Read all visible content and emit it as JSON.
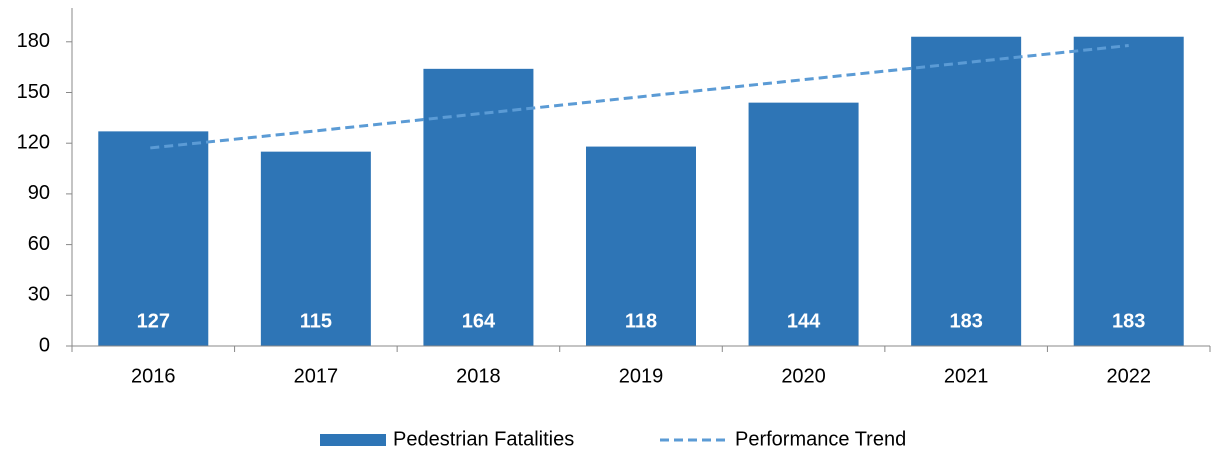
{
  "chart_data": {
    "type": "bar",
    "categories": [
      "2016",
      "2017",
      "2018",
      "2019",
      "2020",
      "2021",
      "2022"
    ],
    "series": [
      {
        "name": "Pedestrian Fatalities",
        "type": "bar",
        "color": "#2e75b6",
        "values": [
          127,
          115,
          164,
          118,
          144,
          183,
          183
        ]
      },
      {
        "name": "Performance Trend",
        "type": "line",
        "style": "dashed",
        "color": "#5b9bd5",
        "values": [
          117.2,
          127.3,
          137.4,
          147.5,
          157.6,
          167.7,
          177.8
        ]
      }
    ],
    "ylim": [
      0,
      200
    ],
    "yticks": [
      0,
      30,
      60,
      90,
      120,
      150,
      180
    ],
    "grid": false,
    "legend": "bottom"
  }
}
